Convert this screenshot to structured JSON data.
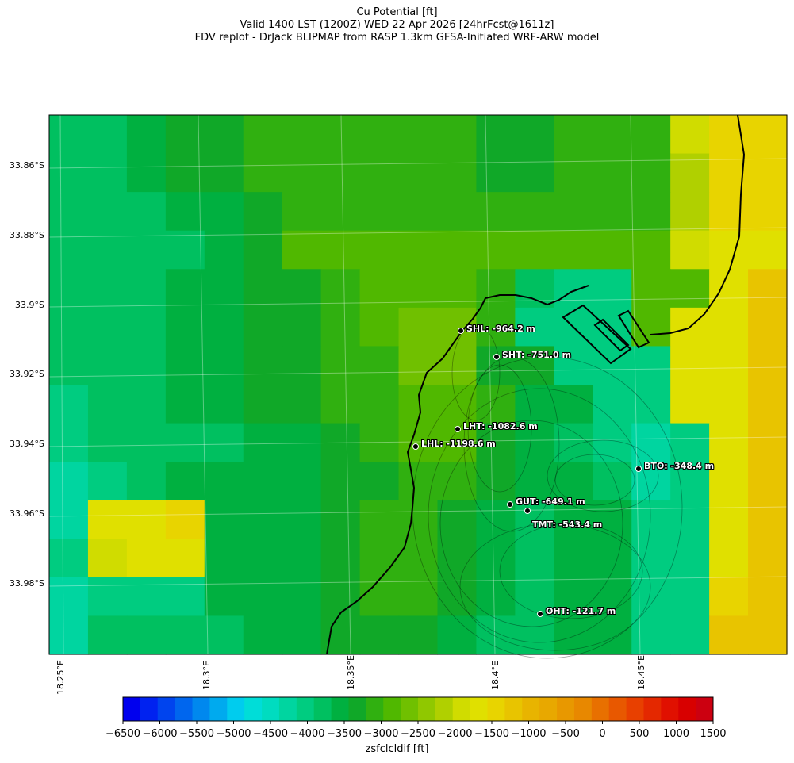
{
  "title": {
    "line1": "Cu Potential [ft]",
    "line2": "Valid 1400 LST (1200Z) WED 22 Apr 2026 [24hrFcst@1611z]",
    "line3": "FDV replot - DrJack BLIPMAP from RASP 1.3km GFSA-Initiated WRF-ARW model"
  },
  "axes": {
    "lat_labels": [
      "33.86°S",
      "33.88°S",
      "33.9°S",
      "33.92°S",
      "33.94°S",
      "33.96°S",
      "33.98°S"
    ],
    "lon_labels": [
      "18.25°E",
      "18.3°E",
      "18.35°E",
      "18.4°E",
      "18.45°E"
    ]
  },
  "field": {
    "rows": [
      [
        11,
        11,
        12,
        13,
        13,
        14,
        14,
        14,
        14,
        14,
        14,
        13,
        13,
        14,
        14,
        14,
        19,
        21,
        21
      ],
      [
        11,
        11,
        12,
        13,
        13,
        14,
        14,
        14,
        14,
        14,
        14,
        13,
        13,
        14,
        14,
        14,
        18,
        21,
        21
      ],
      [
        11,
        11,
        11,
        12,
        12,
        13,
        14,
        14,
        14,
        14,
        14,
        14,
        14,
        14,
        14,
        14,
        18,
        21,
        21
      ],
      [
        11,
        11,
        11,
        11,
        12,
        13,
        15,
        15,
        15,
        15,
        15,
        15,
        15,
        15,
        15,
        15,
        19,
        20,
        20
      ],
      [
        11,
        11,
        11,
        12,
        12,
        13,
        13,
        14,
        15,
        15,
        15,
        14,
        11,
        10,
        10,
        15,
        15,
        20,
        22
      ],
      [
        11,
        11,
        11,
        12,
        12,
        13,
        13,
        14,
        15,
        16,
        16,
        14,
        10,
        10,
        10,
        15,
        20,
        20,
        22
      ],
      [
        11,
        11,
        11,
        12,
        12,
        13,
        13,
        14,
        14,
        16,
        16,
        13,
        13,
        10,
        10,
        10,
        20,
        20,
        22
      ],
      [
        10,
        11,
        11,
        12,
        12,
        13,
        13,
        14,
        14,
        15,
        15,
        14,
        12,
        12,
        10,
        10,
        20,
        20,
        22
      ],
      [
        10,
        11,
        11,
        11,
        11,
        12,
        12,
        13,
        14,
        15,
        15,
        13,
        12,
        11,
        10,
        9,
        10,
        20,
        22
      ],
      [
        9,
        10,
        11,
        12,
        12,
        12,
        12,
        13,
        13,
        14,
        14,
        13,
        12,
        12,
        11,
        9,
        10,
        20,
        22
      ],
      [
        9,
        20,
        20,
        21,
        12,
        12,
        12,
        13,
        14,
        14,
        13,
        12,
        11,
        12,
        12,
        10,
        10,
        20,
        22
      ],
      [
        10,
        19,
        20,
        20,
        12,
        12,
        12,
        13,
        14,
        14,
        13,
        12,
        11,
        12,
        12,
        10,
        10,
        20,
        22
      ],
      [
        9,
        10,
        10,
        10,
        12,
        12,
        12,
        13,
        14,
        14,
        13,
        12,
        11,
        12,
        12,
        10,
        10,
        21,
        22
      ],
      [
        9,
        11,
        11,
        11,
        11,
        12,
        12,
        13,
        13,
        13,
        12,
        11,
        11,
        12,
        12,
        10,
        10,
        22,
        22
      ]
    ]
  },
  "coastline_label": "",
  "stations": [
    {
      "name": "SHL",
      "label": "SHL: -964.2 m"
    },
    {
      "name": "SHT",
      "label": "SHT: -751.0 m"
    },
    {
      "name": "LHT",
      "label": "LHT: -1082.6 m"
    },
    {
      "name": "LHL",
      "label": "LHL: -1198.6 m"
    },
    {
      "name": "BTO",
      "label": "BTO: -348.4 m"
    },
    {
      "name": "GUT",
      "label": "GUT: -649.1 m"
    },
    {
      "name": "TMT",
      "label": "TMT: -543.4 m"
    },
    {
      "name": "OHT",
      "label": "OHT: -121.7 m"
    }
  ],
  "colorbar": {
    "title": "zsfclcldif [ft]",
    "tick_labels": [
      "−6500",
      "−6000",
      "−5500",
      "−5000",
      "−4500",
      "−4000",
      "−3500",
      "−3000",
      "−2500",
      "−2000",
      "−1500",
      "−1000",
      "−500",
      "0",
      "500",
      "1000",
      "1500"
    ],
    "colors": [
      "#0000ee",
      "#0022f0",
      "#0044ee",
      "#0066ee",
      "#0088ee",
      "#00aaee",
      "#00ccee",
      "#00ddd8",
      "#00dcc0",
      "#00d5a0",
      "#00cc80",
      "#00c060",
      "#00b040",
      "#10a828",
      "#30b010",
      "#50b800",
      "#70c000",
      "#90c800",
      "#b0d000",
      "#d0dc00",
      "#e0e000",
      "#e8d400",
      "#e8c400",
      "#e8b400",
      "#e8a800",
      "#e89800",
      "#e88800",
      "#e87000",
      "#e85800",
      "#e84000",
      "#e42800",
      "#e01000",
      "#d80000",
      "#cc0010"
    ]
  }
}
